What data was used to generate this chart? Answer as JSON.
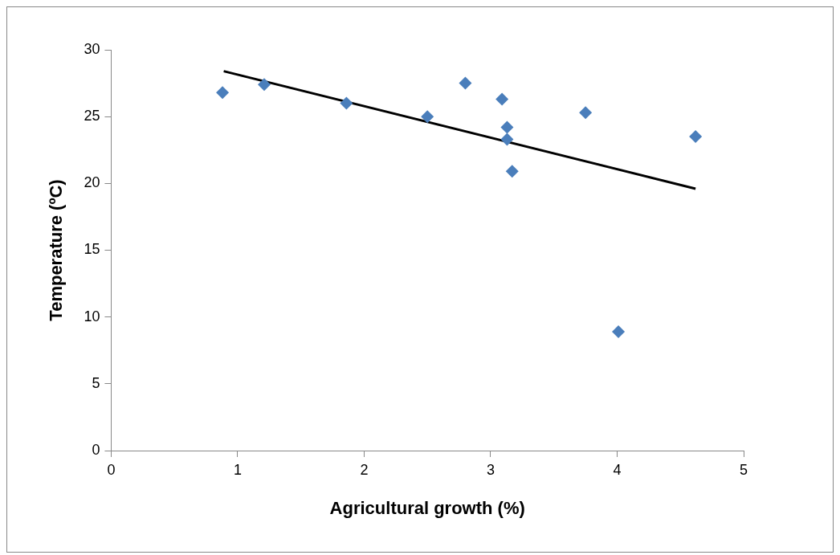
{
  "chart_data": {
    "type": "scatter",
    "xlabel": "Agricultural growth (%)",
    "ylabel": "Temperature (ºC)",
    "xlim": [
      0,
      5
    ],
    "xticks": [
      0,
      1,
      2,
      3,
      4,
      5
    ],
    "ylim": [
      0,
      30
    ],
    "yticks": [
      0,
      5,
      10,
      15,
      20,
      25,
      30
    ],
    "grid": false,
    "legend": false,
    "marker": "diamond",
    "series": [
      {
        "color": "#4a7ebb",
        "x": [
          0.88,
          1.21,
          1.86,
          2.5,
          2.8,
          3.09,
          3.13,
          3.13,
          3.17,
          3.75,
          4.01,
          4.62
        ],
        "values": [
          26.8,
          27.4,
          26,
          25,
          27.5,
          26.3,
          24.2,
          23.3,
          20.9,
          25.3,
          8.9,
          23.5
        ]
      },
      {
        "type": "line",
        "color": "#000000",
        "marker": "none",
        "x": [
          0.89,
          4.62
        ],
        "values": [
          28.4,
          19.6
        ]
      }
    ]
  }
}
